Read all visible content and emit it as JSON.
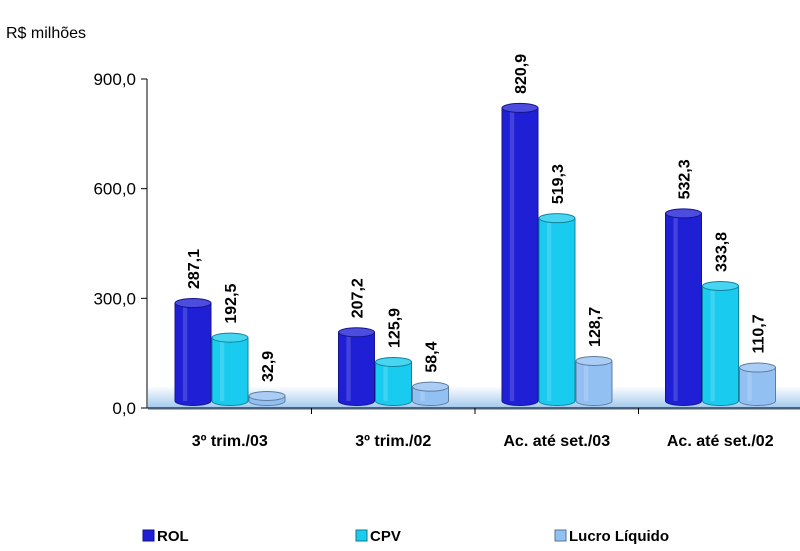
{
  "chart_data": {
    "type": "bar",
    "unit_label": "R$ milhões",
    "categories": [
      "3º trim./03",
      "3º trim./02",
      "Ac. até set./03",
      "Ac. até set./02"
    ],
    "series": [
      {
        "name": "ROL",
        "values": [
          287.1,
          207.2,
          820.9,
          532.3
        ],
        "labels": [
          "287,1",
          "207,2",
          "820,9",
          "532,3"
        ],
        "color": "#1f1fd6"
      },
      {
        "name": "CPV",
        "values": [
          192.5,
          125.9,
          519.3,
          333.8
        ],
        "labels": [
          "192,5",
          "125,9",
          "519,3",
          "333,8"
        ],
        "color": "#19cbef"
      },
      {
        "name": "Lucro Líquido",
        "values": [
          32.9,
          58.4,
          128.7,
          110.7
        ],
        "labels": [
          "32,9",
          "58,4",
          "128,7",
          "110,7"
        ],
        "color": "#93c0f3"
      }
    ],
    "yticks": [
      "0,0",
      "300,0",
      "600,0",
      "900,0"
    ],
    "ytick_values": [
      0,
      300,
      600,
      900
    ],
    "ylim": [
      0,
      900
    ],
    "grid": false,
    "legend_position": "bottom"
  }
}
